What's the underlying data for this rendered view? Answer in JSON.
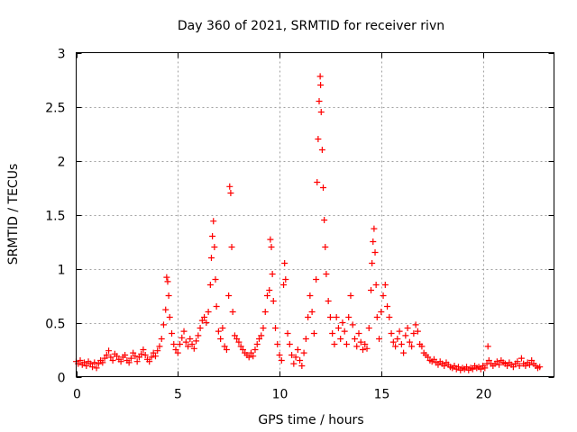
{
  "chart_data": {
    "type": "scatter",
    "title": "Day 360 of 2021, SRMTID for receiver rivn",
    "xlabel": "GPS time / hours",
    "ylabel": "SRMTID / TECUs",
    "xlim": [
      0,
      23.5
    ],
    "ylim": [
      0,
      3
    ],
    "xticks": [
      0,
      5,
      10,
      15,
      20
    ],
    "xtick_labels": [
      "0",
      "5",
      "10",
      "15",
      "20"
    ],
    "yticks": [
      0,
      0.5,
      1,
      1.5,
      2,
      2.5,
      3
    ],
    "ytick_labels": [
      "0",
      "0.5",
      "1",
      "1.5",
      "2",
      "2.5",
      "3"
    ],
    "grid": true,
    "marker": "+",
    "series": [
      {
        "name": "SRMTID",
        "color": "#ff0000",
        "points": [
          [
            0.0,
            0.14
          ],
          [
            0.1,
            0.12
          ],
          [
            0.2,
            0.15
          ],
          [
            0.3,
            0.11
          ],
          [
            0.4,
            0.13
          ],
          [
            0.5,
            0.1
          ],
          [
            0.6,
            0.14
          ],
          [
            0.7,
            0.12
          ],
          [
            0.8,
            0.09
          ],
          [
            0.9,
            0.13
          ],
          [
            1.0,
            0.08
          ],
          [
            1.1,
            0.12
          ],
          [
            1.2,
            0.15
          ],
          [
            1.3,
            0.13
          ],
          [
            1.4,
            0.17
          ],
          [
            1.5,
            0.2
          ],
          [
            1.6,
            0.24
          ],
          [
            1.7,
            0.18
          ],
          [
            1.8,
            0.15
          ],
          [
            1.9,
            0.21
          ],
          [
            2.0,
            0.19
          ],
          [
            2.1,
            0.16
          ],
          [
            2.2,
            0.14
          ],
          [
            2.3,
            0.18
          ],
          [
            2.4,
            0.2
          ],
          [
            2.5,
            0.15
          ],
          [
            2.6,
            0.13
          ],
          [
            2.7,
            0.17
          ],
          [
            2.8,
            0.22
          ],
          [
            2.9,
            0.19
          ],
          [
            3.0,
            0.14
          ],
          [
            3.1,
            0.18
          ],
          [
            3.2,
            0.21
          ],
          [
            3.3,
            0.25
          ],
          [
            3.4,
            0.2
          ],
          [
            3.5,
            0.16
          ],
          [
            3.6,
            0.14
          ],
          [
            3.7,
            0.18
          ],
          [
            3.8,
            0.22
          ],
          [
            3.9,
            0.19
          ],
          [
            4.0,
            0.24
          ],
          [
            4.1,
            0.28
          ],
          [
            4.2,
            0.35
          ],
          [
            4.3,
            0.48
          ],
          [
            4.4,
            0.62
          ],
          [
            4.45,
            0.92
          ],
          [
            4.5,
            0.88
          ],
          [
            4.55,
            0.75
          ],
          [
            4.6,
            0.55
          ],
          [
            4.7,
            0.4
          ],
          [
            4.8,
            0.3
          ],
          [
            4.9,
            0.25
          ],
          [
            5.0,
            0.22
          ],
          [
            5.1,
            0.3
          ],
          [
            5.2,
            0.36
          ],
          [
            5.3,
            0.42
          ],
          [
            5.4,
            0.32
          ],
          [
            5.5,
            0.28
          ],
          [
            5.6,
            0.35
          ],
          [
            5.7,
            0.3
          ],
          [
            5.8,
            0.26
          ],
          [
            5.9,
            0.33
          ],
          [
            6.0,
            0.38
          ],
          [
            6.1,
            0.45
          ],
          [
            6.2,
            0.52
          ],
          [
            6.3,
            0.55
          ],
          [
            6.4,
            0.5
          ],
          [
            6.5,
            0.6
          ],
          [
            6.6,
            0.85
          ],
          [
            6.65,
            1.1
          ],
          [
            6.7,
            1.3
          ],
          [
            6.75,
            1.44
          ],
          [
            6.8,
            1.2
          ],
          [
            6.85,
            0.9
          ],
          [
            6.9,
            0.65
          ],
          [
            7.0,
            0.42
          ],
          [
            7.1,
            0.35
          ],
          [
            7.2,
            0.45
          ],
          [
            7.3,
            0.28
          ],
          [
            7.4,
            0.25
          ],
          [
            7.5,
            0.75
          ],
          [
            7.55,
            1.76
          ],
          [
            7.6,
            1.7
          ],
          [
            7.65,
            1.2
          ],
          [
            7.7,
            0.6
          ],
          [
            7.8,
            0.38
          ],
          [
            7.9,
            0.35
          ],
          [
            8.0,
            0.32
          ],
          [
            8.1,
            0.28
          ],
          [
            8.2,
            0.25
          ],
          [
            8.3,
            0.22
          ],
          [
            8.4,
            0.2
          ],
          [
            8.5,
            0.18
          ],
          [
            8.6,
            0.22
          ],
          [
            8.7,
            0.19
          ],
          [
            8.8,
            0.25
          ],
          [
            8.9,
            0.3
          ],
          [
            9.0,
            0.35
          ],
          [
            9.1,
            0.38
          ],
          [
            9.2,
            0.45
          ],
          [
            9.3,
            0.6
          ],
          [
            9.4,
            0.75
          ],
          [
            9.5,
            0.8
          ],
          [
            9.55,
            1.27
          ],
          [
            9.6,
            1.2
          ],
          [
            9.65,
            0.95
          ],
          [
            9.7,
            0.7
          ],
          [
            9.8,
            0.45
          ],
          [
            9.9,
            0.3
          ],
          [
            10.0,
            0.2
          ],
          [
            10.1,
            0.15
          ],
          [
            10.2,
            0.85
          ],
          [
            10.25,
            1.05
          ],
          [
            10.3,
            0.9
          ],
          [
            10.4,
            0.4
          ],
          [
            10.5,
            0.3
          ],
          [
            10.6,
            0.2
          ],
          [
            10.7,
            0.12
          ],
          [
            10.8,
            0.18
          ],
          [
            10.9,
            0.25
          ],
          [
            11.0,
            0.15
          ],
          [
            11.1,
            0.1
          ],
          [
            11.2,
            0.22
          ],
          [
            11.3,
            0.35
          ],
          [
            11.4,
            0.55
          ],
          [
            11.5,
            0.75
          ],
          [
            11.6,
            0.6
          ],
          [
            11.7,
            0.4
          ],
          [
            11.8,
            0.9
          ],
          [
            11.85,
            1.8
          ],
          [
            11.9,
            2.2
          ],
          [
            11.95,
            2.55
          ],
          [
            12.0,
            2.78
          ],
          [
            12.02,
            2.7
          ],
          [
            12.05,
            2.45
          ],
          [
            12.1,
            2.1
          ],
          [
            12.15,
            1.75
          ],
          [
            12.2,
            1.45
          ],
          [
            12.25,
            1.2
          ],
          [
            12.3,
            0.95
          ],
          [
            12.4,
            0.7
          ],
          [
            12.5,
            0.55
          ],
          [
            12.6,
            0.4
          ],
          [
            12.7,
            0.3
          ],
          [
            12.8,
            0.55
          ],
          [
            12.9,
            0.45
          ],
          [
            13.0,
            0.35
          ],
          [
            13.1,
            0.5
          ],
          [
            13.2,
            0.42
          ],
          [
            13.3,
            0.3
          ],
          [
            13.4,
            0.55
          ],
          [
            13.5,
            0.75
          ],
          [
            13.6,
            0.48
          ],
          [
            13.7,
            0.35
          ],
          [
            13.8,
            0.28
          ],
          [
            13.9,
            0.4
          ],
          [
            14.0,
            0.32
          ],
          [
            14.1,
            0.25
          ],
          [
            14.2,
            0.3
          ],
          [
            14.3,
            0.26
          ],
          [
            14.4,
            0.45
          ],
          [
            14.5,
            0.8
          ],
          [
            14.55,
            1.05
          ],
          [
            14.6,
            1.25
          ],
          [
            14.65,
            1.37
          ],
          [
            14.7,
            1.15
          ],
          [
            14.75,
            0.85
          ],
          [
            14.8,
            0.55
          ],
          [
            14.9,
            0.35
          ],
          [
            15.0,
            0.6
          ],
          [
            15.1,
            0.75
          ],
          [
            15.2,
            0.85
          ],
          [
            15.3,
            0.65
          ],
          [
            15.4,
            0.55
          ],
          [
            15.5,
            0.4
          ],
          [
            15.6,
            0.32
          ],
          [
            15.7,
            0.28
          ],
          [
            15.8,
            0.35
          ],
          [
            15.9,
            0.42
          ],
          [
            16.0,
            0.3
          ],
          [
            16.1,
            0.22
          ],
          [
            16.2,
            0.38
          ],
          [
            16.3,
            0.45
          ],
          [
            16.4,
            0.32
          ],
          [
            16.5,
            0.28
          ],
          [
            16.6,
            0.4
          ],
          [
            16.7,
            0.48
          ],
          [
            16.8,
            0.42
          ],
          [
            16.9,
            0.3
          ],
          [
            17.0,
            0.28
          ],
          [
            17.1,
            0.22
          ],
          [
            17.2,
            0.2
          ],
          [
            17.3,
            0.18
          ],
          [
            17.4,
            0.15
          ],
          [
            17.5,
            0.14
          ],
          [
            17.6,
            0.16
          ],
          [
            17.7,
            0.13
          ],
          [
            17.8,
            0.11
          ],
          [
            17.9,
            0.14
          ],
          [
            18.0,
            0.12
          ],
          [
            18.1,
            0.1
          ],
          [
            18.2,
            0.13
          ],
          [
            18.3,
            0.11
          ],
          [
            18.4,
            0.09
          ],
          [
            18.5,
            0.08
          ],
          [
            18.6,
            0.1
          ],
          [
            18.7,
            0.07
          ],
          [
            18.8,
            0.09
          ],
          [
            18.9,
            0.06
          ],
          [
            19.0,
            0.08
          ],
          [
            19.1,
            0.07
          ],
          [
            19.2,
            0.09
          ],
          [
            19.3,
            0.06
          ],
          [
            19.4,
            0.08
          ],
          [
            19.5,
            0.07
          ],
          [
            19.6,
            0.1
          ],
          [
            19.7,
            0.08
          ],
          [
            19.8,
            0.09
          ],
          [
            19.9,
            0.07
          ],
          [
            20.0,
            0.1
          ],
          [
            20.1,
            0.08
          ],
          [
            20.2,
            0.12
          ],
          [
            20.25,
            0.28
          ],
          [
            20.3,
            0.15
          ],
          [
            20.4,
            0.12
          ],
          [
            20.5,
            0.1
          ],
          [
            20.6,
            0.12
          ],
          [
            20.7,
            0.14
          ],
          [
            20.8,
            0.11
          ],
          [
            20.9,
            0.15
          ],
          [
            21.0,
            0.13
          ],
          [
            21.1,
            0.12
          ],
          [
            21.2,
            0.1
          ],
          [
            21.3,
            0.13
          ],
          [
            21.4,
            0.11
          ],
          [
            21.5,
            0.09
          ],
          [
            21.6,
            0.12
          ],
          [
            21.7,
            0.14
          ],
          [
            21.8,
            0.1
          ],
          [
            21.9,
            0.17
          ],
          [
            22.0,
            0.12
          ],
          [
            22.1,
            0.1
          ],
          [
            22.2,
            0.13
          ],
          [
            22.3,
            0.11
          ],
          [
            22.4,
            0.15
          ],
          [
            22.5,
            0.12
          ],
          [
            22.6,
            0.1
          ],
          [
            22.7,
            0.08
          ],
          [
            22.8,
            0.09
          ]
        ]
      }
    ]
  }
}
